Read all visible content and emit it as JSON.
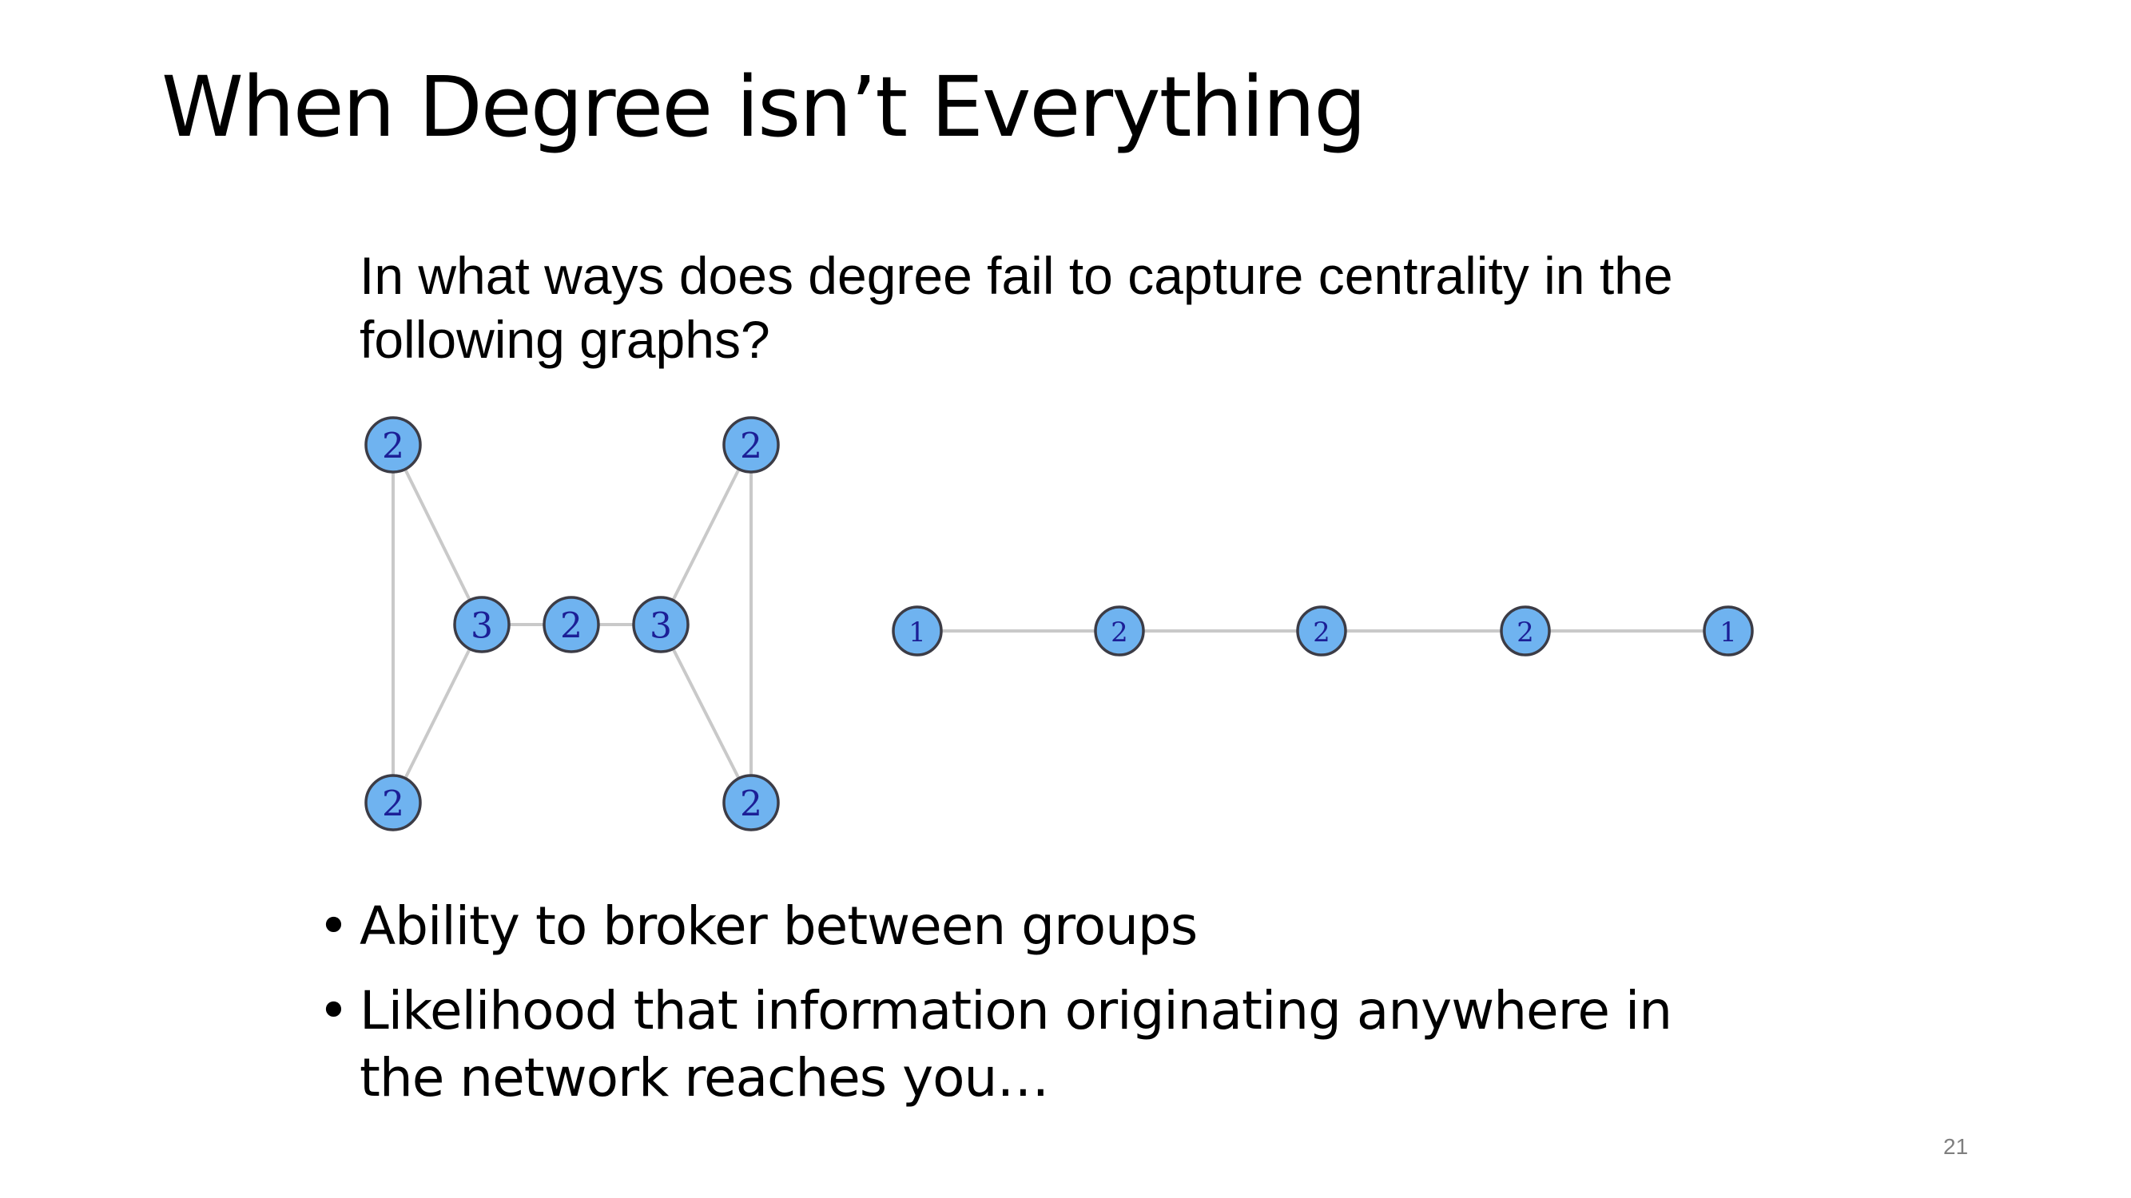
{
  "slide": {
    "title": "When Degree isn’t Everything",
    "question_lines": [
      "In what ways does degree fail to capture centrality in the",
      "following graphs?"
    ],
    "bullets": [
      {
        "symbol": "•",
        "text": "Ability to broker between groups"
      },
      {
        "symbol": "•",
        "text": "Likelihood that information originating anywhere in the network reaches you…"
      }
    ],
    "page_number": "21"
  },
  "diagram": {
    "colors": {
      "node_fill": "#6fb3f0",
      "node_stroke": "#3c3c46",
      "edge": "#c9c9c9",
      "label": "#1c1f96"
    },
    "graphs": [
      {
        "name": "bowtie-graph",
        "nodes": [
          {
            "id": "a",
            "label": "2"
          },
          {
            "id": "b",
            "label": "2"
          },
          {
            "id": "c",
            "label": "3"
          },
          {
            "id": "d",
            "label": "2"
          },
          {
            "id": "e",
            "label": "3"
          },
          {
            "id": "f",
            "label": "2"
          },
          {
            "id": "g",
            "label": "2"
          }
        ],
        "edges": [
          [
            "a",
            "b"
          ],
          [
            "a",
            "c"
          ],
          [
            "b",
            "c"
          ],
          [
            "c",
            "d"
          ],
          [
            "d",
            "e"
          ],
          [
            "e",
            "f"
          ],
          [
            "e",
            "g"
          ],
          [
            "f",
            "g"
          ]
        ]
      },
      {
        "name": "path-graph",
        "nodes": [
          {
            "id": "p1",
            "label": "1"
          },
          {
            "id": "p2",
            "label": "2"
          },
          {
            "id": "p3",
            "label": "2"
          },
          {
            "id": "p4",
            "label": "2"
          },
          {
            "id": "p5",
            "label": "1"
          }
        ],
        "edges": [
          [
            "p1",
            "p2"
          ],
          [
            "p2",
            "p3"
          ],
          [
            "p3",
            "p4"
          ],
          [
            "p4",
            "p5"
          ]
        ]
      }
    ]
  }
}
